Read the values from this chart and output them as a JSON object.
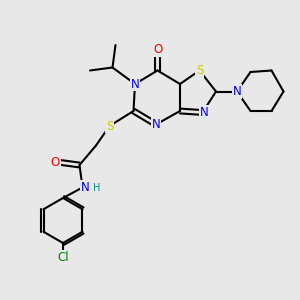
{
  "background_color": "#e8e8e8",
  "bond_color": "#000000",
  "bond_width": 1.5,
  "atoms": {
    "N_blue": "#0000ee",
    "S_yellow": "#cccc00",
    "O_red": "#ff0000",
    "Cl_green": "#008000",
    "H_teal": "#009090"
  },
  "font_size_atom": 8.5,
  "font_size_H": 7.0,
  "xlim": [
    0,
    10
  ],
  "ylim": [
    0,
    10
  ]
}
